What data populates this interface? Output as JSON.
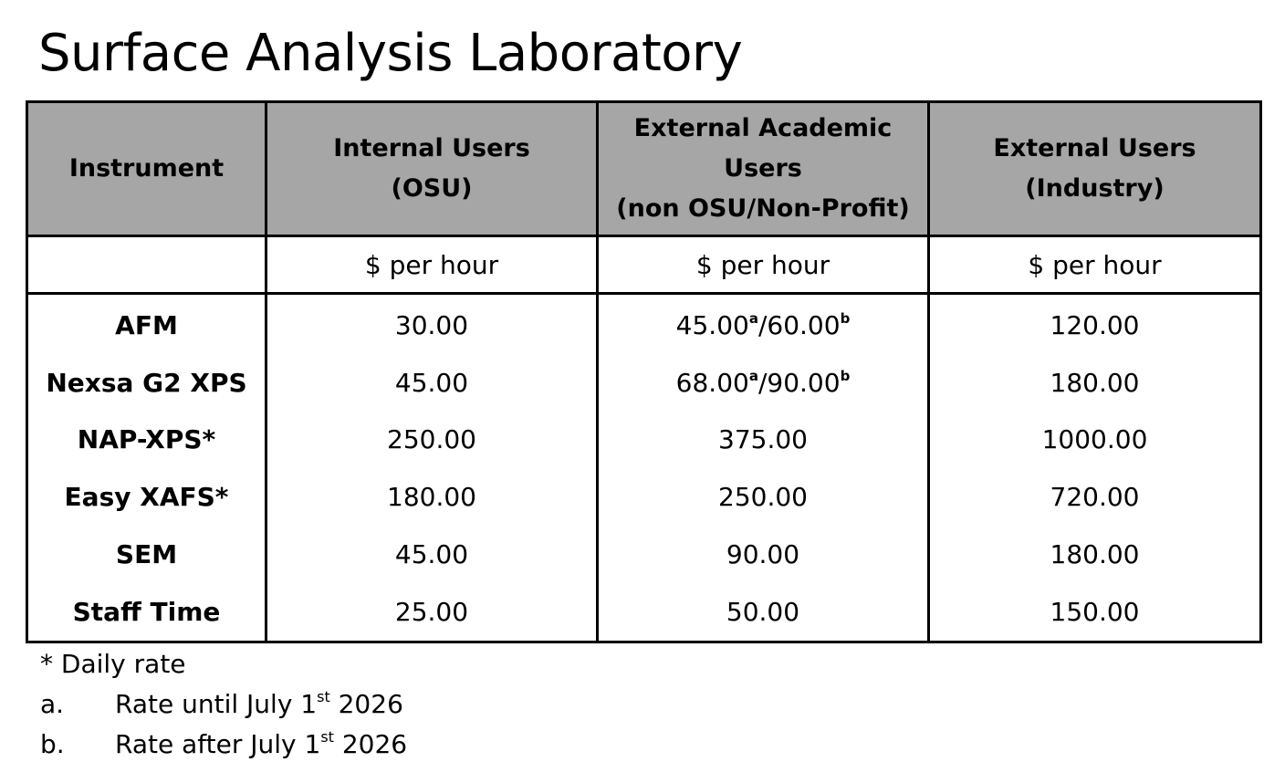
{
  "title": "Surface Analysis Laboratory",
  "table": {
    "headers": [
      [
        "Instrument"
      ],
      [
        "Internal Users",
        "(OSU)"
      ],
      [
        "External Academic",
        "Users",
        "(non OSU/Non-Profit)"
      ],
      [
        "External Users",
        "(Industry)"
      ]
    ],
    "units": [
      "",
      "$ per hour",
      "$ per hour",
      "$ per hour"
    ],
    "rows": [
      {
        "instrument": "AFM",
        "internal": "30.00",
        "academic": {
          "a": "45.00",
          "sup_a": "a",
          "sep": "/",
          "b": "60.00",
          "sup_b": "b"
        },
        "industry": "120.00"
      },
      {
        "instrument": "Nexsa G2 XPS",
        "internal": "45.00",
        "academic": {
          "a": "68.00",
          "sup_a": "a",
          "sep": "/",
          "b": "90.00",
          "sup_b": "b"
        },
        "industry": "180.00"
      },
      {
        "instrument": "NAP-XPS*",
        "internal": "250.00",
        "academic": "375.00",
        "industry": "1000.00"
      },
      {
        "instrument": "Easy XAFS*",
        "internal": "180.00",
        "academic": "250.00",
        "industry": "720.00"
      },
      {
        "instrument": "SEM",
        "internal": "45.00",
        "academic": "90.00",
        "industry": "180.00"
      },
      {
        "instrument": "Staff Time",
        "internal": "25.00",
        "academic": "50.00",
        "industry": "150.00"
      }
    ]
  },
  "notes": {
    "daily": "* Daily rate",
    "a": {
      "marker": "a.",
      "text_before": "Rate until July 1",
      "sup": "st",
      "text_after": " 2026"
    },
    "b": {
      "marker": "b.",
      "text_before": "Rate after July 1",
      "sup": "st",
      "text_after": " 2026"
    }
  }
}
